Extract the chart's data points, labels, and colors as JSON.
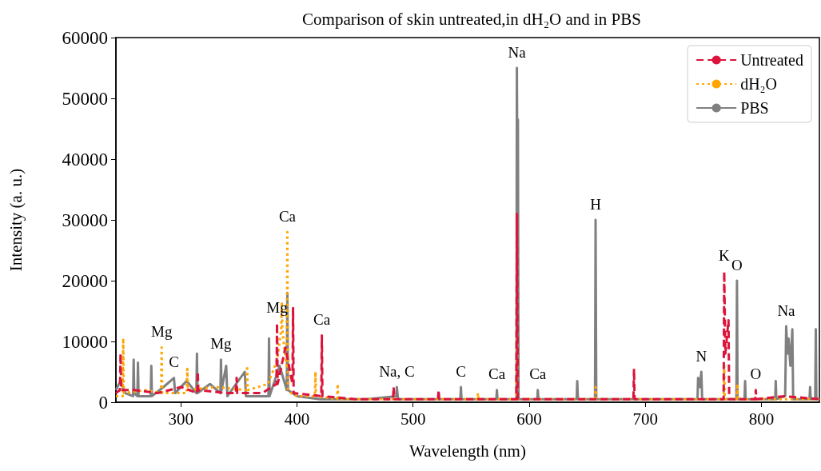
{
  "chart_data": {
    "type": "line",
    "title": "Comparison of skin untreated,in dH₂O and in PBS",
    "xlabel": "Wavelength (nm)",
    "ylabel": "Intensity (a. u.)",
    "xlim": [
      244,
      850
    ],
    "xticks": [
      300,
      400,
      500,
      600,
      700,
      800
    ],
    "ylim": [
      0,
      60000
    ],
    "yticks": [
      0,
      10000,
      20000,
      30000,
      40000,
      50000,
      60000
    ],
    "legend": "top right",
    "series": [
      {
        "name": "Untreated",
        "color": "#dc143c",
        "line_style": "dashed",
        "x": [
          244,
          247.5,
          248,
          248.5,
          260,
          280,
          300,
          314,
          314.5,
          315,
          340,
          347.5,
          348,
          348.5,
          370,
          382.3,
          382.8,
          383.3,
          390,
          396.1,
          396.6,
          397.1,
          420.9,
          421.4,
          421.9,
          450,
          482.7,
          483.2,
          483.8,
          521.5,
          522,
          522.5,
          589,
          589.5,
          590.2,
          650,
          689.8,
          690.3,
          690.8,
          730,
          767.5,
          768,
          769,
          771.7,
          772.3,
          794.7,
          795.2,
          795.7,
          820,
          850
        ],
        "values": [
          1500,
          2000,
          8000,
          2000,
          2000,
          1500,
          2500,
          1500,
          5000,
          2000,
          1500,
          1500,
          4000,
          1500,
          1500,
          3000,
          13000,
          3000,
          9000,
          3000,
          15500,
          1500,
          1000,
          11000,
          1000,
          500,
          500,
          2500,
          500,
          500,
          2000,
          500,
          500,
          31000,
          500,
          500,
          500,
          5500,
          500,
          500,
          500,
          21500,
          8000,
          13500,
          500,
          500,
          2000,
          500,
          1000,
          500
        ]
      },
      {
        "name": "dH₂O",
        "color": "#ffa500",
        "line_style": "dotted",
        "x": [
          244,
          249.8,
          250.3,
          250.8,
          270,
          282.9,
          283.4,
          283.9,
          305,
          305.5,
          306,
          330,
          356.5,
          357,
          357.5,
          375,
          383,
          386.4,
          386.9,
          387.4,
          389,
          391.2,
          391.7,
          392.2,
          395,
          400,
          415.4,
          415.9,
          416.4,
          434.5,
          435,
          435.5,
          500,
          555.4,
          555.9,
          556.4,
          589,
          589.5,
          590,
          656.7,
          657.2,
          657.7,
          767.5,
          768,
          768.5,
          778.8,
          779.3,
          779.8,
          850
        ],
        "values": [
          1000,
          1000,
          10500,
          1500,
          2000,
          1500,
          9000,
          1500,
          1500,
          5500,
          2000,
          2500,
          2000,
          6000,
          2000,
          3000,
          7000,
          12000,
          16500,
          12000,
          9000,
          6000,
          28000,
          2000,
          1500,
          1000,
          1000,
          5000,
          1000,
          500,
          3000,
          500,
          500,
          500,
          1500,
          500,
          500,
          11000,
          500,
          500,
          2500,
          500,
          500,
          6000,
          500,
          500,
          3000,
          500,
          500
        ]
      },
      {
        "name": "PBS",
        "color": "#808080",
        "line_style": "solid",
        "x": [
          244,
          248,
          252,
          258.8,
          259.3,
          259.8,
          262.5,
          263,
          263.5,
          274,
          274.5,
          275,
          285,
          294,
          295,
          305,
          313.3,
          313.8,
          314.3,
          325,
          334,
          334.5,
          335,
          339,
          340,
          355,
          356,
          365,
          375.4,
          375.9,
          376.4,
          385,
          391.2,
          391.7,
          392.2,
          400,
          420,
          460,
          485.5,
          486,
          487,
          520,
          540.7,
          541.2,
          541.7,
          571.7,
          572.2,
          572.7,
          589,
          589.4,
          590,
          590.3,
          590.8,
          607,
          607.4,
          608,
          640.9,
          641.4,
          642,
          656.7,
          657.2,
          657.8,
          700,
          745,
          745.5,
          747,
          748.3,
          749,
          778.5,
          779,
          779.5,
          785.5,
          786,
          786.5,
          811.9,
          812.4,
          812.9,
          820.5,
          821.4,
          822.5,
          823.4,
          825,
          826.7,
          827.4,
          841.5,
          842,
          842.5,
          846.4,
          846.9,
          847.4,
          850
        ],
        "values": [
          2000,
          3500,
          1500,
          1000,
          7000,
          1500,
          1000,
          6500,
          1000,
          1000,
          6000,
          1000,
          2500,
          4000,
          1500,
          3500,
          1500,
          8000,
          1500,
          3000,
          1500,
          7000,
          2000,
          6000,
          1000,
          5000,
          1000,
          1000,
          1000,
          10500,
          1000,
          6000,
          2000,
          18000,
          2000,
          1000,
          500,
          500,
          1000,
          2500,
          500,
          500,
          500,
          2500,
          500,
          500,
          2000,
          500,
          500,
          55000,
          28000,
          46500,
          500,
          500,
          2000,
          500,
          500,
          3500,
          500,
          500,
          30000,
          500,
          500,
          500,
          4000,
          2500,
          5000,
          500,
          500,
          20000,
          500,
          500,
          3500,
          500,
          500,
          3500,
          500,
          1000,
          12500,
          8000,
          10500,
          6000,
          12000,
          500,
          500,
          2500,
          500,
          500,
          12000,
          500,
          500
        ]
      }
    ],
    "annotations": [
      {
        "text": "Mg",
        "x": 283.4,
        "y": 9000
      },
      {
        "text": "C",
        "x": 294,
        "y": 4000
      },
      {
        "text": "Mg",
        "x": 334.5,
        "y": 7000
      },
      {
        "text": "Mg",
        "x": 382.8,
        "y": 13000
      },
      {
        "text": "Ca",
        "x": 391.7,
        "y": 28000
      },
      {
        "text": "Ca",
        "x": 421.4,
        "y": 11000
      },
      {
        "text": "Na, C",
        "x": 486,
        "y": 2500
      },
      {
        "text": "C",
        "x": 541.2,
        "y": 2500
      },
      {
        "text": "Ca",
        "x": 572.2,
        "y": 2000
      },
      {
        "text": "Na",
        "x": 589.4,
        "y": 55000
      },
      {
        "text": "Ca",
        "x": 607.4,
        "y": 2000
      },
      {
        "text": "H",
        "x": 657.2,
        "y": 30000
      },
      {
        "text": "N",
        "x": 748.3,
        "y": 5000
      },
      {
        "text": "K",
        "x": 768,
        "y": 21500
      },
      {
        "text": "O",
        "x": 779,
        "y": 20000
      },
      {
        "text": "O",
        "x": 795.2,
        "y": 2000
      },
      {
        "text": "Na",
        "x": 821.4,
        "y": 12500
      }
    ]
  }
}
